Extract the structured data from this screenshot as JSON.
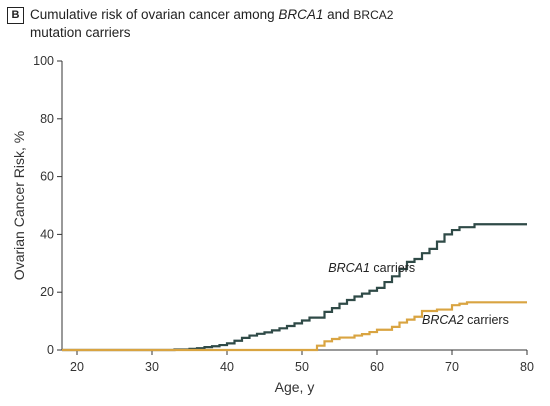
{
  "panel_label": "B",
  "title": {
    "prefix": "Cumulative risk of ovarian cancer among ",
    "gene1": "BRCA1",
    "mid": " and ",
    "gene2": "BRCA2",
    "suffix": "mutation carriers"
  },
  "chart_data": {
    "type": "line",
    "step": true,
    "xlabel": "Age, y",
    "ylabel": "Ovarian Cancer Risk, %",
    "xlim": [
      18,
      80
    ],
    "ylim": [
      0,
      100
    ],
    "xticks": [
      20,
      30,
      40,
      50,
      60,
      70,
      80
    ],
    "yticks": [
      0,
      20,
      40,
      60,
      80,
      100
    ],
    "grid": false,
    "series": [
      {
        "name": "BRCA1 carriers",
        "color": "#2f4a47",
        "x": [
          18,
          33,
          35,
          36,
          37,
          38,
          39,
          40,
          41,
          42,
          43,
          44,
          45,
          46,
          47,
          48,
          49,
          50,
          51,
          52,
          53,
          54,
          55,
          56,
          57,
          58,
          59,
          60,
          61,
          62,
          63,
          64,
          65,
          66,
          67,
          68,
          69,
          70,
          71,
          72,
          73,
          80
        ],
        "y": [
          0,
          0.2,
          0.4,
          0.6,
          1,
          1.3,
          1.7,
          2.3,
          3.2,
          4.2,
          5,
          5.6,
          6.1,
          6.8,
          7.5,
          8.3,
          9.2,
          10.2,
          11.2,
          11.2,
          13.2,
          14.5,
          16,
          17.3,
          18.5,
          19.5,
          20.5,
          21.5,
          23.5,
          25.5,
          28,
          30.5,
          31.5,
          33.5,
          35,
          37.5,
          40,
          41.5,
          42.5,
          42.5,
          43.5,
          43.5
        ]
      },
      {
        "name": "BRCA2 carriers",
        "color": "#d9a441",
        "x": [
          18,
          52,
          53,
          54,
          55,
          57,
          58,
          59,
          60,
          62,
          63,
          64,
          65,
          66,
          67,
          68,
          69,
          70,
          71,
          72,
          80
        ],
        "y": [
          0,
          1.5,
          3,
          3.8,
          4.3,
          5,
          5.5,
          6.2,
          7,
          8,
          9.5,
          10.5,
          11.5,
          13.5,
          13.5,
          14,
          14,
          15.5,
          16,
          16.5,
          16.5
        ]
      }
    ],
    "annotations": [
      {
        "text": "BRCA1 carriers",
        "x": 53.5,
        "y": 27
      },
      {
        "text": "BRCA2 carriers",
        "x": 66,
        "y": 9
      }
    ]
  }
}
